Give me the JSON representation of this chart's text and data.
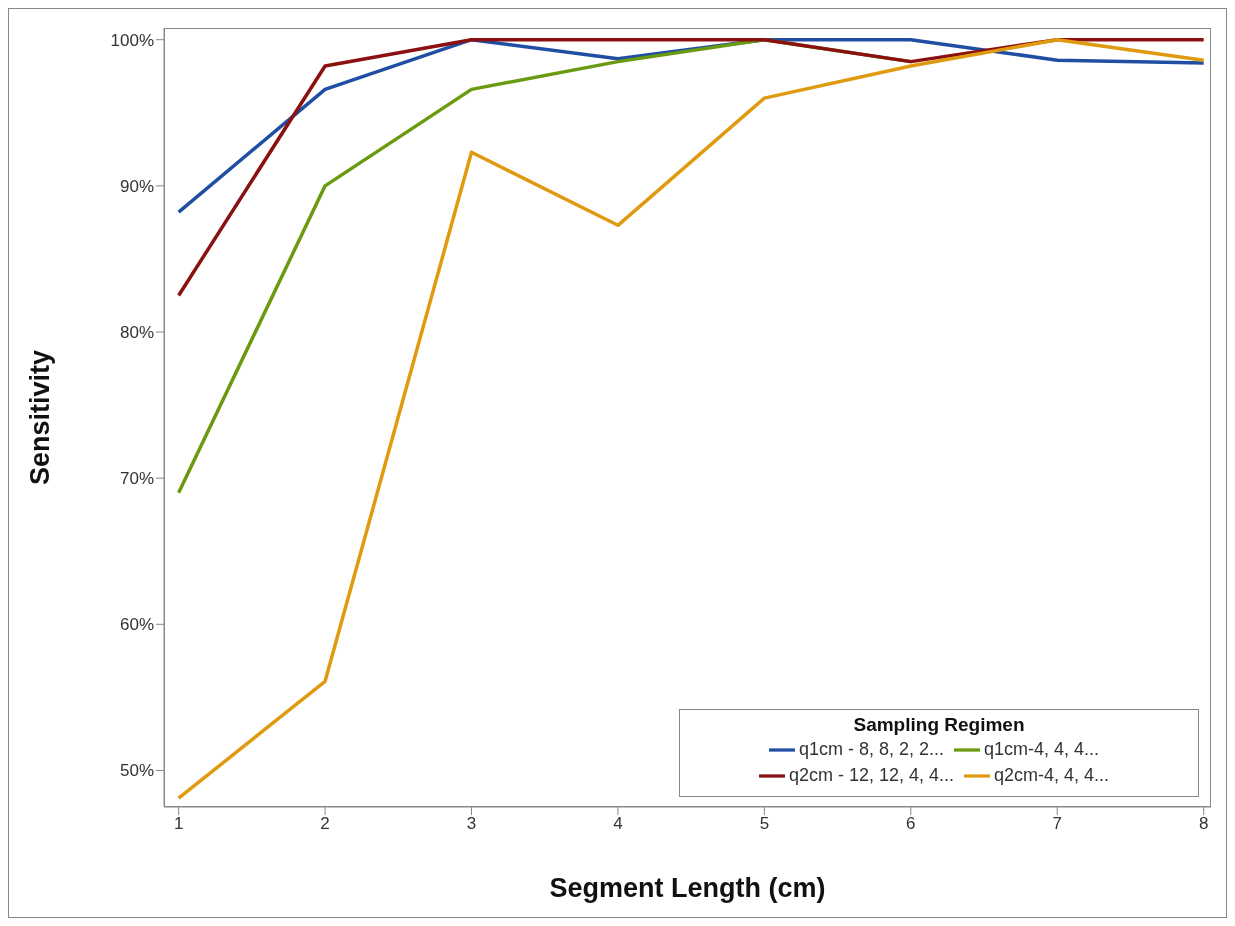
{
  "chart_data": {
    "type": "line",
    "xlabel": "Segment Length (cm)",
    "ylabel": "Sensitivity",
    "legend_title": "Sampling Regimen",
    "legend": "bottom right",
    "grid": false,
    "marker": "none",
    "line_style": "solid",
    "x": [
      1,
      2,
      3,
      4,
      5,
      6,
      7,
      8
    ],
    "xlim": [
      0.9,
      8.05
    ],
    "xticks": [
      1,
      2,
      3,
      4,
      5,
      6,
      7,
      8
    ],
    "ylim": [
      47.5,
      100.8
    ],
    "yticks": [
      {
        "value": 50,
        "label": "50%"
      },
      {
        "value": 60,
        "label": "60%"
      },
      {
        "value": 70,
        "label": "70%"
      },
      {
        "value": 80,
        "label": "80%"
      },
      {
        "value": 90,
        "label": "90%"
      },
      {
        "value": 100,
        "label": "100%"
      }
    ],
    "series": [
      {
        "name": "q1cm - 8, 8, 2, 2...",
        "color": "#1f4ea3",
        "values": [
          88.2,
          96.6,
          100,
          98.7,
          100,
          100,
          98.6,
          98.4
        ]
      },
      {
        "name": "q2cm - 12, 12, 4, 4...",
        "color": "#8b1010",
        "values": [
          82.5,
          98.2,
          100,
          100,
          100,
          98.5,
          100,
          100
        ]
      },
      {
        "name": "q1cm-4, 4, 4...",
        "color": "#6a9a10",
        "values": [
          69.0,
          90,
          96.6,
          98.5,
          100,
          98.5,
          null,
          null
        ]
      },
      {
        "name": "q2cm-4, 4, 4...",
        "color": "#e09a10",
        "values": [
          48.1,
          56.1,
          92.3,
          87.3,
          96.0,
          98.2,
          100,
          98.6
        ]
      }
    ]
  }
}
